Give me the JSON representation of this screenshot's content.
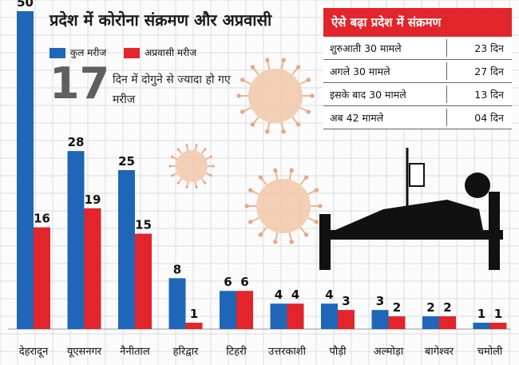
{
  "title": "प्रदेश में कोरोना संक्रमण और अप्रवासी",
  "legend": [
    {
      "label": "कुल मरीज",
      "color": "#1f66b8"
    },
    {
      "label": "अप्रवासी मरीज",
      "color": "#e1252b"
    }
  ],
  "highlight": {
    "number": "17",
    "text": "दिन में दोगुने से ज्यादा हो गए मरीज"
  },
  "growth_table": {
    "title": "ऐसे बढ़ा प्रदेश में संक्रमण",
    "rows": [
      {
        "label": "शुरुआती 30 मामले",
        "days": "23 दिन"
      },
      {
        "label": "अगले 30 मामले",
        "days": "27 दिन"
      },
      {
        "label": "इसके बाद 30 मामले",
        "days": "13 दिन"
      },
      {
        "label": "अब 42 मामले",
        "days": "04 दिन"
      }
    ]
  },
  "chart_data": {
    "type": "bar",
    "categories": [
      "देहरादून",
      "यूएसनगर",
      "नैनीताल",
      "हरिद्वार",
      "टिहरी",
      "उत्तरकाशी",
      "पौड़ी",
      "अल्मोड़ा",
      "बागेश्वर",
      "चमोली"
    ],
    "series": [
      {
        "name": "कुल मरीज",
        "color": "#1f66b8",
        "values": [
          50,
          28,
          25,
          8,
          6,
          4,
          4,
          3,
          2,
          1
        ]
      },
      {
        "name": "अप्रवासी मरीज",
        "color": "#e1252b",
        "values": [
          16,
          19,
          15,
          1,
          6,
          4,
          3,
          2,
          2,
          1
        ]
      }
    ],
    "ylim": [
      0,
      50
    ]
  }
}
